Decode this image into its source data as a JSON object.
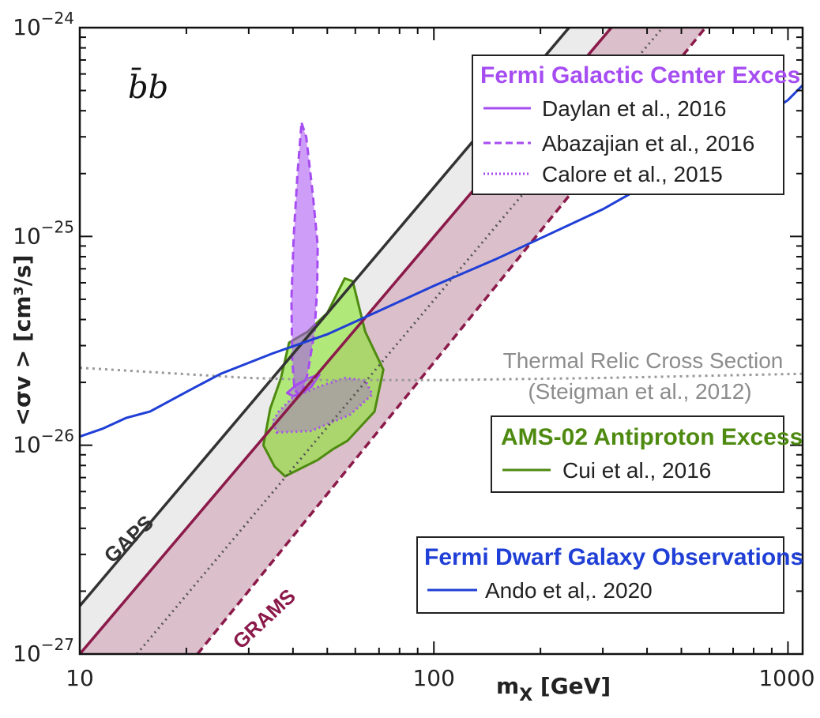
{
  "chart_data": {
    "type": "line",
    "scale": {
      "x": "log",
      "y": "log"
    },
    "xlim": [
      10,
      1100
    ],
    "ylim": [
      1e-27,
      1e-24
    ],
    "xlabel": "m_X [GeV]",
    "xlabel_main": "m",
    "xlabel_sub": "X",
    "xlabel_rest": " [GeV]",
    "ylabel": "<σv > [cm³/s]",
    "channel_label": "b̄b",
    "x_ticks": [
      {
        "value": 10,
        "label": "10"
      },
      {
        "value": 100,
        "label": "100"
      },
      {
        "value": 1000,
        "label": "1000"
      }
    ],
    "y_ticks": [
      {
        "value": 1e-27,
        "base": "10",
        "exp": "−27"
      },
      {
        "value": 1e-26,
        "base": "10",
        "exp": "−26"
      },
      {
        "value": 1e-25,
        "base": "10",
        "exp": "−25"
      },
      {
        "value": 1e-24,
        "base": "10",
        "exp": "−24"
      }
    ],
    "gaps": {
      "label": "GAPS",
      "color": "#333333",
      "fill": "#ebebeb",
      "line": [
        [
          10,
          1.7e-27
        ],
        [
          1100,
          2.1e-23
        ]
      ],
      "band_upper": [
        [
          10,
          1.7e-27
        ],
        [
          1100,
          2.1e-23
        ]
      ],
      "band_lower": [
        [
          10,
          1e-27
        ],
        [
          1100,
          1.2e-23
        ]
      ]
    },
    "grams": {
      "label": "GRAMS",
      "color": "#8b1a4a",
      "fill": "#cfa9b8",
      "solid_line": [
        [
          10,
          1e-27
        ],
        [
          1100,
          1.2e-23
        ]
      ],
      "dotted_line": [
        [
          14.5,
          1e-27
        ],
        [
          1100,
          6.3e-24
        ]
      ],
      "dashed_line": [
        [
          21.5,
          1e-27
        ],
        [
          1100,
          3.75e-24
        ]
      ],
      "band_upper": [
        [
          10,
          1e-27
        ],
        [
          1100,
          1.2e-23
        ]
      ],
      "band_lower": [
        [
          21.5,
          1e-27
        ],
        [
          1100,
          3.75e-24
        ]
      ]
    },
    "thermal_relic": {
      "label_line1": "Thermal Relic Cross Section",
      "label_line2": "(Steigman et al., 2012)",
      "color": "#999999",
      "points": [
        [
          10,
          2.35e-26
        ],
        [
          30,
          2.1e-26
        ],
        [
          50,
          2.05e-26
        ],
        [
          100,
          2.05e-26
        ],
        [
          300,
          2.1e-26
        ],
        [
          1100,
          2.2e-26
        ]
      ]
    },
    "series": [
      {
        "name": "Ando et al,. 2020",
        "group": "Fermi Dwarf Galaxy Observations",
        "style": "solid",
        "color": "#1f3fd6",
        "points": [
          [
            10,
            1.1e-26
          ],
          [
            11.6,
            1.2e-26
          ],
          [
            13.5,
            1.35e-26
          ],
          [
            15.8,
            1.45e-26
          ],
          [
            20,
            1.8e-26
          ],
          [
            25,
            2.2e-26
          ],
          [
            35,
            2.75e-26
          ],
          [
            50,
            3.4e-26
          ],
          [
            70,
            4.4e-26
          ],
          [
            100,
            5.8e-26
          ],
          [
            150,
            7.8e-26
          ],
          [
            200,
            9.8e-26
          ],
          [
            300,
            1.35e-25
          ],
          [
            500,
            2.2e-25
          ],
          [
            700,
            3e-25
          ],
          [
            1000,
            4.5e-25
          ],
          [
            1100,
            5.3e-25
          ]
        ]
      },
      {
        "name": "Daylan et al., 2016",
        "group": "Fermi Galactic Center Exces",
        "style": "solid",
        "color": "#a64df2",
        "fill": "rgba(166,77,242,0.35)",
        "polygon": [
          [
            38.5,
            1.78e-26
          ],
          [
            41,
            1.95e-26
          ],
          [
            44.5,
            2.1e-26
          ],
          [
            47.5,
            2.18e-26
          ],
          [
            45,
            1.9e-26
          ],
          [
            42,
            1.76e-26
          ],
          [
            40,
            1.72e-26
          ]
        ]
      },
      {
        "name": "Abazajian et al., 2016",
        "group": "Fermi Galactic Center Exces",
        "style": "dashed",
        "color": "#a64df2",
        "fill": "rgba(166,77,242,0.55)",
        "polygon": [
          [
            42.3,
            3.5e-25
          ],
          [
            43.6,
            3e-25
          ],
          [
            45.5,
            1.6e-25
          ],
          [
            47,
            9e-26
          ],
          [
            46.8,
            5.5e-26
          ],
          [
            46,
            3.5e-26
          ],
          [
            44,
            2.2e-26
          ],
          [
            42,
            1.7e-26
          ],
          [
            40.4,
            1.85e-26
          ],
          [
            39.8,
            2.6e-26
          ],
          [
            39.6,
            5e-26
          ],
          [
            40.2,
            1e-25
          ],
          [
            41.2,
            2e-25
          ]
        ]
      },
      {
        "name": "Calore et al., 2015",
        "group": "Fermi Galactic Center Exces",
        "style": "dotted",
        "color": "#a64df2",
        "fill": "rgba(166,77,242,0.35)",
        "polygon": [
          [
            36,
            1.15e-26
          ],
          [
            45,
            1.17e-26
          ],
          [
            58,
            1.4e-26
          ],
          [
            67,
            1.75e-26
          ],
          [
            64,
            2.05e-26
          ],
          [
            56,
            2.1e-26
          ],
          [
            47,
            1.9e-26
          ],
          [
            40,
            1.7e-26
          ],
          [
            36.5,
            1.45e-26
          ],
          [
            35,
            1.3e-26
          ]
        ]
      },
      {
        "name": "Cui et al., 2016",
        "group": "AMS-02 Antiproton Excess",
        "style": "solid",
        "color": "#4e8a10",
        "fill": "rgba(138,230,46,0.6)",
        "polygon": [
          [
            33,
            1e-26
          ],
          [
            34.5,
            1.5e-26
          ],
          [
            37,
            2.1e-26
          ],
          [
            39,
            3.1e-26
          ],
          [
            44,
            3.5e-26
          ],
          [
            50,
            4.3e-26
          ],
          [
            56,
            6.3e-26
          ],
          [
            59,
            6.1e-26
          ],
          [
            64,
            3.5e-26
          ],
          [
            72,
            2.3e-26
          ],
          [
            68,
            1.45e-26
          ],
          [
            57,
            1.05e-26
          ],
          [
            52,
            9.6e-27
          ],
          [
            47,
            8.5e-27
          ],
          [
            38,
            7.1e-27
          ],
          [
            35.5,
            7.9e-27
          ]
        ]
      }
    ],
    "legends": {
      "gce": {
        "title": "Fermi Galactic Center Exces",
        "title_color": "#a64df2",
        "entries": [
          {
            "label": "Daylan et al., 2016",
            "style": "solid"
          },
          {
            "label": "Abazajian et al., 2016",
            "style": "dashed"
          },
          {
            "label": "Calore et al., 2015",
            "style": "dotted"
          }
        ],
        "placement": "top-right"
      },
      "ams": {
        "title": "AMS-02 Antiproton Excess",
        "title_color": "#4e8a10",
        "entries": [
          {
            "label": "Cui et al., 2016",
            "style": "solid"
          }
        ],
        "placement": "right"
      },
      "dwarf": {
        "title": "Fermi Dwarf Galaxy Observations",
        "title_color": "#1f3fd6",
        "entries": [
          {
            "label": "Ando et al,. 2020",
            "style": "solid"
          }
        ],
        "placement": "bottom-right"
      }
    },
    "grid": false
  }
}
